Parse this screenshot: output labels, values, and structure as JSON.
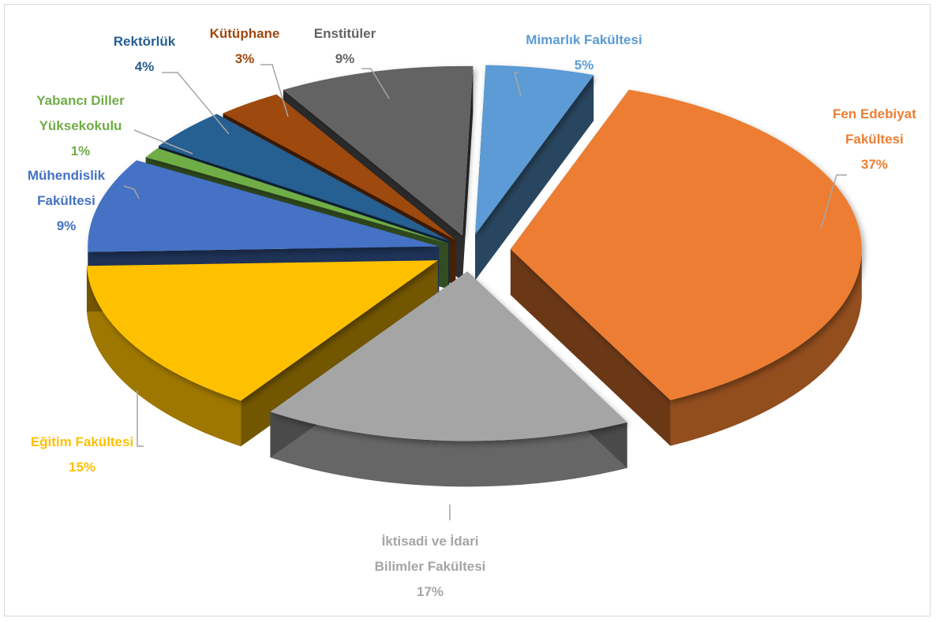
{
  "chart_data": {
    "type": "pie",
    "style": "3d-exploded",
    "slices": [
      {
        "label": [
          "Mimarlık Fakültesi"
        ],
        "value": 5,
        "pct": "5%",
        "color": "#5b9bd5"
      },
      {
        "label": [
          "Fen Edebiyat",
          "Fakültesi"
        ],
        "value": 37,
        "pct": "37%",
        "color": "#ed7d31"
      },
      {
        "label": [
          "İktisadi ve İdari",
          "Bilimler Fakültesi"
        ],
        "value": 17,
        "pct": "17%",
        "color": "#a5a5a5"
      },
      {
        "label": [
          "Eğitim Fakültesi"
        ],
        "value": 15,
        "pct": "15%",
        "color": "#ffc000"
      },
      {
        "label": [
          "Mühendislik",
          "Fakültesi"
        ],
        "value": 9,
        "pct": "9%",
        "color": "#4472c4"
      },
      {
        "label": [
          "Yabancı Diller",
          "Yüksekokulu"
        ],
        "value": 1,
        "pct": "1%",
        "color": "#70ad47"
      },
      {
        "label": [
          "Rektörlük"
        ],
        "value": 4,
        "pct": "4%",
        "color": "#255e91"
      },
      {
        "label": [
          "Kütüphane"
        ],
        "value": 3,
        "pct": "3%",
        "color": "#9e480e"
      },
      {
        "label": [
          "Enstitüler"
        ],
        "value": 9,
        "pct": "9%",
        "color": "#636363"
      }
    ]
  }
}
